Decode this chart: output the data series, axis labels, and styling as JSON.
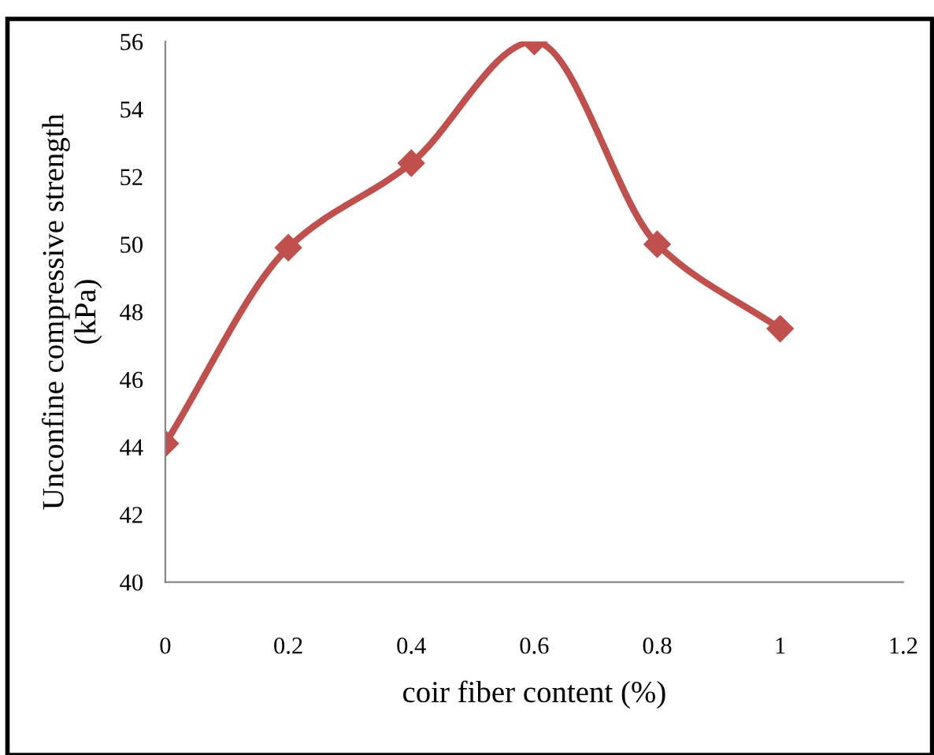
{
  "chart_data": {
    "type": "line",
    "xlabel": "coir fiber content (%)",
    "ylabel": "Unconfine compressive strength\n(kPa)",
    "x": [
      0,
      0.2,
      0.4,
      0.6,
      0.8,
      1
    ],
    "series": [
      {
        "color": "#c0504d",
        "values": [
          44.1,
          49.9,
          52.4,
          56,
          50,
          47.5
        ]
      }
    ],
    "xlim": [
      0,
      1.2
    ],
    "xticks": [
      0,
      0.2,
      0.4,
      0.6,
      0.8,
      1,
      1.2
    ],
    "ylim": [
      40,
      56
    ],
    "yticks": [
      40,
      42,
      44,
      46,
      48,
      50,
      52,
      54,
      56
    ],
    "marker": "diamond",
    "line_style": "solid",
    "grid": false,
    "legend": false
  }
}
